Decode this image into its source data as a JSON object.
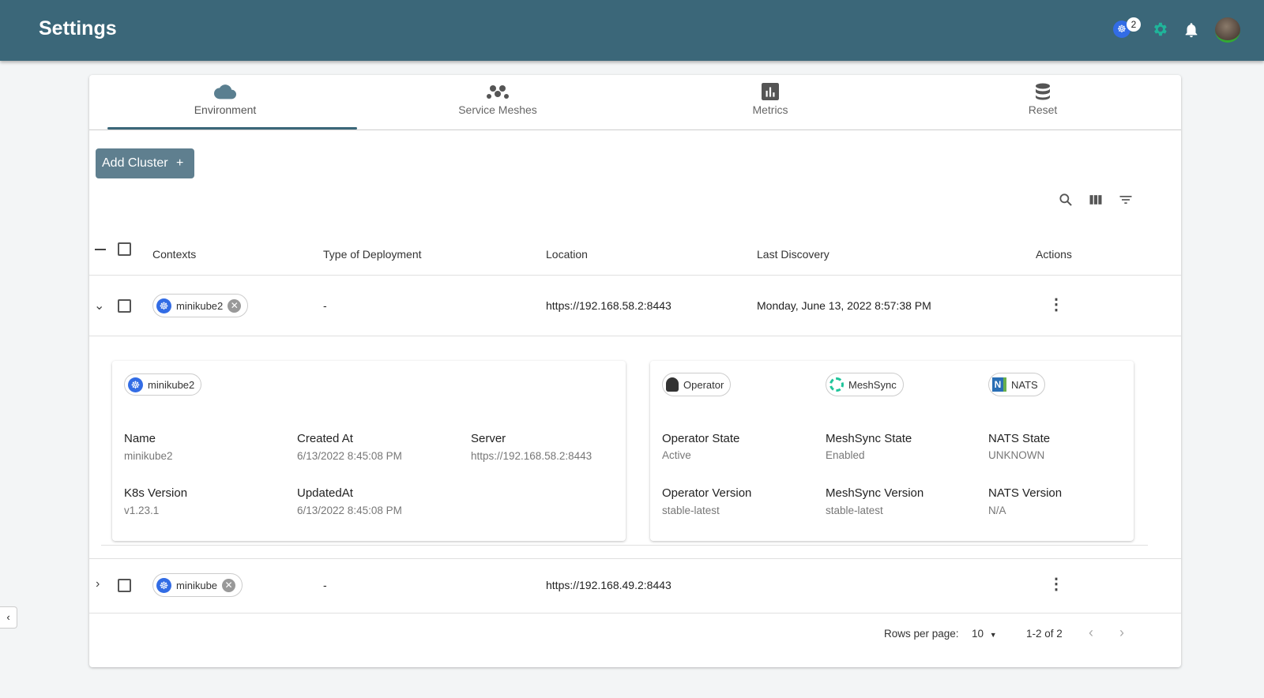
{
  "header": {
    "title": "Settings",
    "k8s_badge_count": "2",
    "icons": [
      "kubernetes-icon",
      "gear-icon",
      "bell-icon",
      "avatar"
    ]
  },
  "tabs": [
    {
      "label": "Environment",
      "icon": "cloud-icon",
      "active": true
    },
    {
      "label": "Service Meshes",
      "icon": "mesh-icon"
    },
    {
      "label": "Metrics",
      "icon": "bar-chart-icon"
    },
    {
      "label": "Reset",
      "icon": "database-icon"
    }
  ],
  "add_cluster": {
    "label": "Add Cluster",
    "icon": "plus-icon"
  },
  "toolbar": {
    "icons": [
      "search-icon",
      "view-columns-icon",
      "filter-icon"
    ]
  },
  "table": {
    "columns": [
      "Contexts",
      "Type of Deployment",
      "Location",
      "Last Discovery",
      "Actions"
    ],
    "rows": [
      {
        "context": "minikube2",
        "type": "-",
        "location": "https://192.168.58.2:8443",
        "last_discovery": "Monday, June 13, 2022 8:57:38 PM",
        "expanded": true
      },
      {
        "context": "minikube",
        "type": "-",
        "location": "https://192.168.49.2:8443",
        "last_discovery": "",
        "expanded": false
      }
    ]
  },
  "details": {
    "chip": "minikube2",
    "name_label": "Name",
    "name": "minikube2",
    "created_label": "Created At",
    "created": "6/13/2022 8:45:08 PM",
    "server_label": "Server",
    "server": "https://192.168.58.2:8443",
    "k8s_label": "K8s Version",
    "k8s": "v1.23.1",
    "updated_label": "UpdatedAt",
    "updated": "6/13/2022 8:45:08 PM",
    "operator_chip": "Operator",
    "meshsync_chip": "MeshSync",
    "nats_chip": "NATS",
    "op_state_label": "Operator State",
    "op_state": "Active",
    "ms_state_label": "MeshSync State",
    "ms_state": "Enabled",
    "nats_state_label": "NATS State",
    "nats_state": "UNKNOWN",
    "op_ver_label": "Operator Version",
    "op_ver": "stable-latest",
    "ms_ver_label": "MeshSync Version",
    "ms_ver": "stable-latest",
    "nats_ver_label": "NATS Version",
    "nats_ver": "N/A"
  },
  "pagination": {
    "rows_label": "Rows per page:",
    "rows_value": "10",
    "range": "1-2 of 2"
  },
  "sidebar_toggle": "‹"
}
